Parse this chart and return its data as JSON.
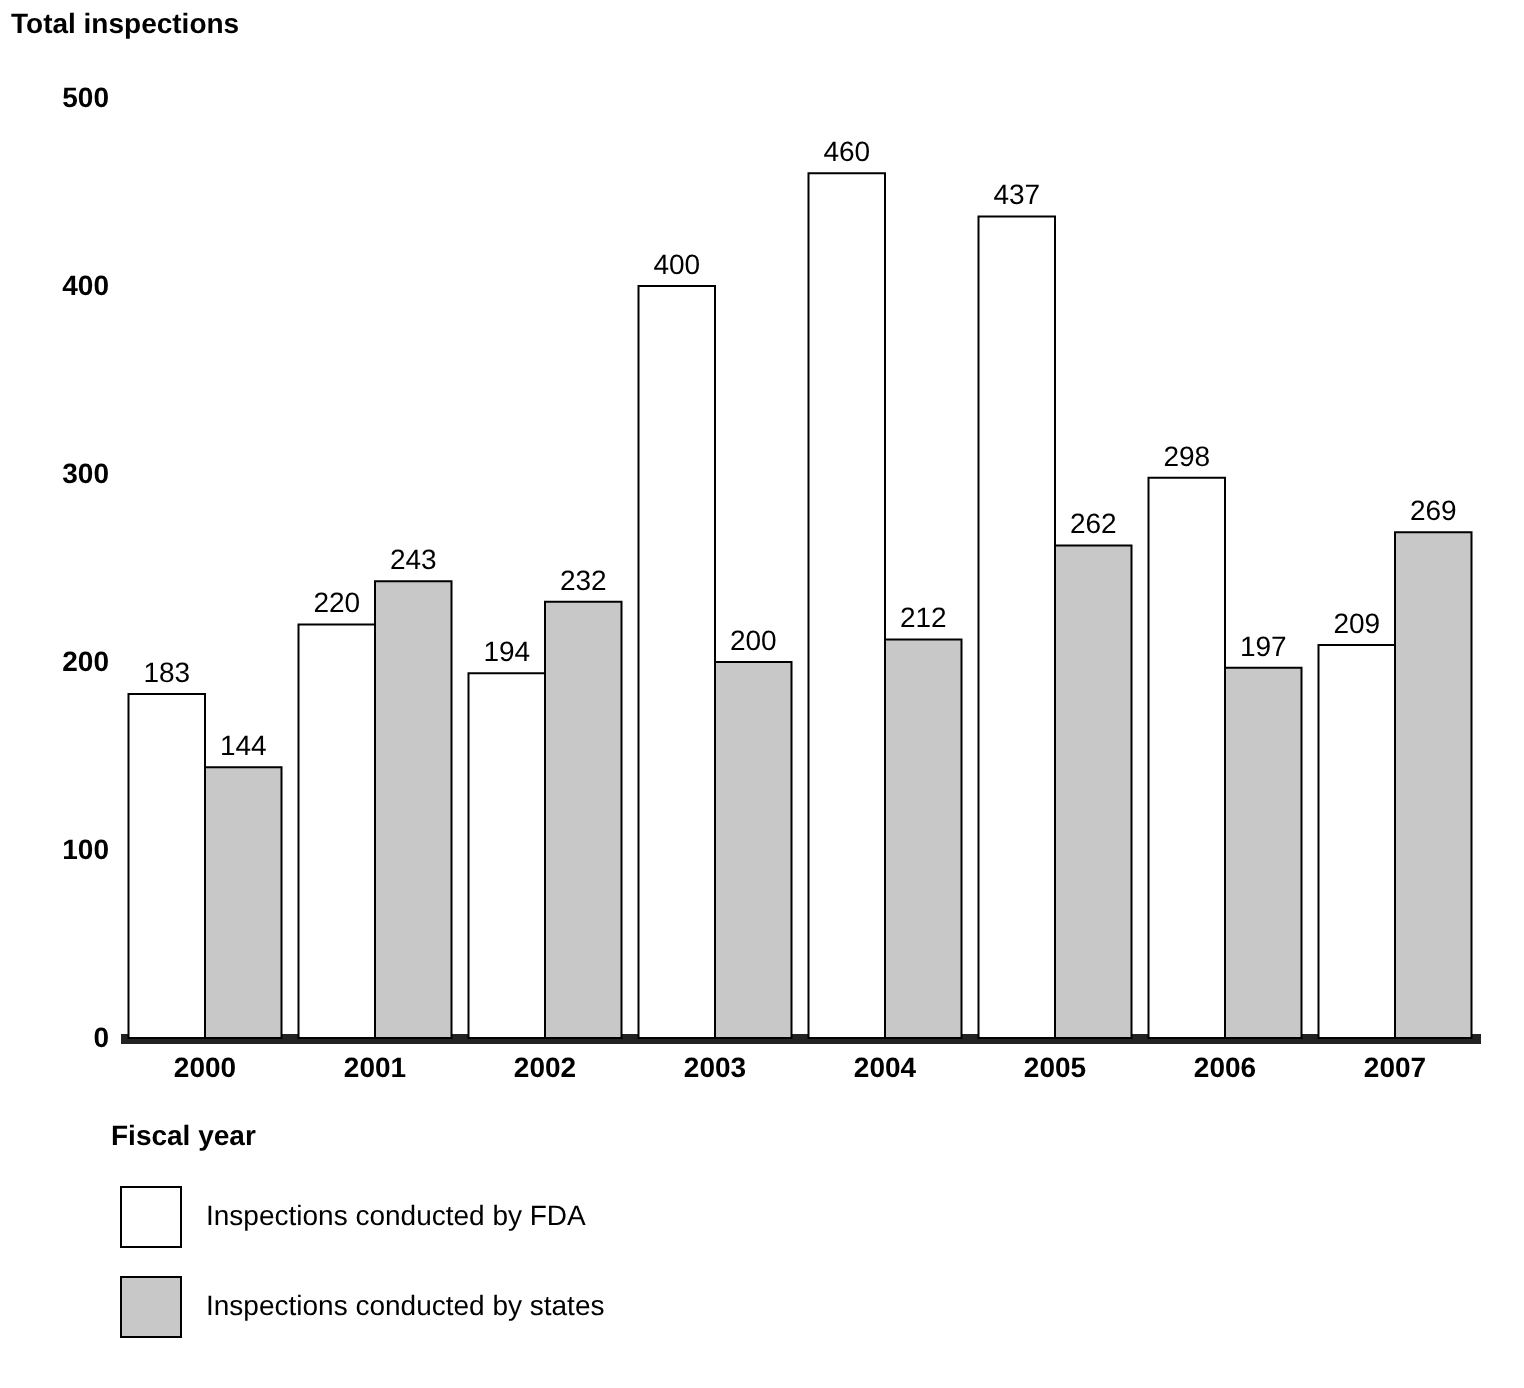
{
  "chart_data": {
    "type": "bar",
    "ylabel": "Total inspections",
    "xlabel": "Fiscal year",
    "categories": [
      "2000",
      "2001",
      "2002",
      "2003",
      "2004",
      "2005",
      "2006",
      "2007"
    ],
    "series": [
      {
        "name": "Inspections conducted by FDA",
        "color": "#ffffff",
        "values": [
          183,
          220,
          194,
          400,
          460,
          437,
          298,
          209
        ]
      },
      {
        "name": "Inspections conducted by states",
        "color": "#c8c8c8",
        "values": [
          144,
          243,
          232,
          200,
          212,
          262,
          197,
          269
        ]
      }
    ],
    "ylim": [
      0,
      500
    ],
    "yticks": [
      0,
      100,
      200,
      300,
      400,
      500
    ],
    "grid": false,
    "legend": "bottom",
    "data_labels": true
  }
}
